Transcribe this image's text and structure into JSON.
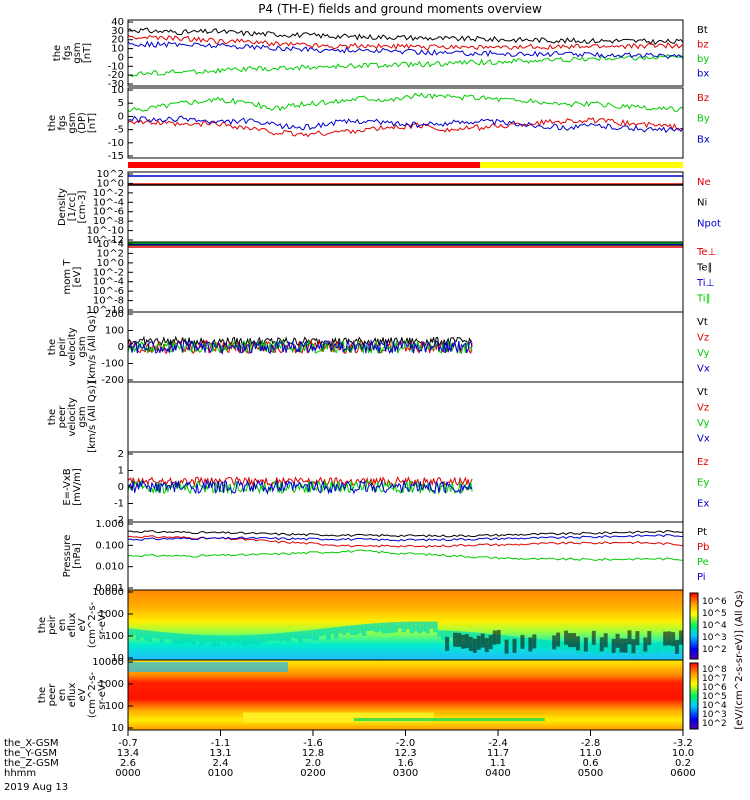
{
  "title": "P4 (TH-E) fields and ground moments overview",
  "colors": {
    "black": "#000000",
    "red": "#e00000",
    "green": "#00cc00",
    "blue": "#0000cc",
    "yellow": "#ffff00"
  },
  "chart_data": [
    {
      "type": "line",
      "id": "fgs_gsm",
      "ylabel": [
        "the",
        "fgs",
        "gsm",
        "[nT]"
      ],
      "yticks": [
        "40",
        "30",
        "20",
        "10",
        "0",
        "-10",
        "-20",
        "-30"
      ],
      "ylim": [
        -30,
        40
      ],
      "series": [
        {
          "name": "Bt",
          "color": "#000000",
          "values": [
            30,
            28,
            27,
            28,
            26,
            25,
            24,
            23,
            22,
            22,
            21,
            20,
            20,
            19,
            19,
            18,
            18,
            18,
            17,
            17
          ]
        },
        {
          "name": "bz",
          "color": "#e00000",
          "values": [
            22,
            21,
            20,
            18,
            17,
            15,
            14,
            12,
            13,
            12,
            11,
            12,
            11,
            10,
            12,
            11,
            12,
            12,
            13,
            13
          ]
        },
        {
          "name": "by",
          "color": "#00cc00",
          "values": [
            -18,
            -16,
            -15,
            -14,
            -12,
            -12,
            -10,
            -10,
            -8,
            -8,
            -7,
            -6,
            -5,
            -4,
            -3,
            -2,
            -1,
            0,
            0,
            1
          ]
        },
        {
          "name": "bx",
          "color": "#0000cc",
          "values": [
            15,
            14,
            14,
            13,
            12,
            10,
            9,
            8,
            8,
            7,
            6,
            5,
            5,
            4,
            4,
            4,
            3,
            3,
            2,
            2
          ]
        }
      ]
    },
    {
      "type": "line",
      "id": "fgs_gsm_dp",
      "ylabel": [
        "the",
        "fgs",
        "gsm",
        "(DP)",
        "[nT]"
      ],
      "yticks": [
        "10",
        "5",
        "0",
        "-5",
        "-10",
        "-15"
      ],
      "ylim": [
        -18,
        12
      ],
      "series": [
        {
          "name": "Bz",
          "color": "#e00000",
          "values": [
            -2,
            -3,
            -4,
            -3,
            -5,
            -7,
            -8,
            -7,
            -6,
            -5,
            -4,
            -6,
            -5,
            -4,
            -3,
            -2,
            -2,
            -3,
            -4,
            -5
          ]
        },
        {
          "name": "By",
          "color": "#00cc00",
          "values": [
            2,
            4,
            6,
            7,
            6,
            3,
            5,
            6,
            8,
            7,
            9,
            8,
            8,
            7,
            6,
            5,
            5,
            4,
            3,
            3
          ]
        },
        {
          "name": "Bx",
          "color": "#0000cc",
          "values": [
            -1,
            -2,
            -1,
            -3,
            -2,
            -4,
            -5,
            -3,
            -2,
            -3,
            -4,
            -3,
            -2,
            -3,
            -4,
            -5,
            -4,
            -5,
            -6,
            -6
          ]
        }
      ]
    },
    {
      "type": "line",
      "id": "density",
      "ylabel": [
        "Density",
        "[1/cc]",
        "[cm-3]"
      ],
      "yticks": [
        "10^2",
        "10^0",
        "10^-2",
        "10^-4",
        "10^-6",
        "10^-8",
        "10^-10",
        "10^-12"
      ],
      "series": [
        {
          "name": "Ne",
          "color": "#e00000"
        },
        {
          "name": "Ni",
          "color": "#000000"
        },
        {
          "name": "Npot",
          "color": "#0000cc"
        }
      ]
    },
    {
      "type": "line",
      "id": "mom_temp",
      "ylabel": [
        "mom T",
        "[eV]"
      ],
      "yticks": [
        "10^4",
        "10^2",
        "10^0",
        "10^-2",
        "10^-4",
        "10^-6",
        "10^-8",
        "10^-10"
      ],
      "series": [
        {
          "name": "Te⊥",
          "color": "#e00000"
        },
        {
          "name": "Te∥",
          "color": "#000000"
        },
        {
          "name": "Ti⊥",
          "color": "#0000cc"
        },
        {
          "name": "Ti∥",
          "color": "#00cc00"
        }
      ]
    },
    {
      "type": "line",
      "id": "peir_velocity",
      "ylabel": [
        "the",
        "peir",
        "velocity",
        "gsm",
        "[km/s (All Qs)]"
      ],
      "yticks": [
        "200",
        "100",
        "0",
        "-100",
        "-200"
      ],
      "ylim": [
        -200,
        200
      ],
      "series": [
        {
          "name": "Vt",
          "color": "#000000"
        },
        {
          "name": "Vz",
          "color": "#e00000"
        },
        {
          "name": "Vy",
          "color": "#00cc00"
        },
        {
          "name": "Vx",
          "color": "#0000cc"
        }
      ]
    },
    {
      "type": "line",
      "id": "peer_velocity",
      "ylabel": [
        "the",
        "peer",
        "velocity",
        "gsm",
        "[km/s (All Qs)]"
      ],
      "yticks": [],
      "series": [
        {
          "name": "Vt",
          "color": "#000000"
        },
        {
          "name": "Vz",
          "color": "#e00000"
        },
        {
          "name": "Vy",
          "color": "#00cc00"
        },
        {
          "name": "Vx",
          "color": "#0000cc"
        }
      ]
    },
    {
      "type": "line",
      "id": "e_vxb",
      "ylabel": [
        "E=-VxB",
        "[mV/m]"
      ],
      "yticks": [
        "2",
        "1",
        "0",
        "-1",
        "-2"
      ],
      "ylim": [
        -2,
        2
      ],
      "series": [
        {
          "name": "Ez",
          "color": "#e00000"
        },
        {
          "name": "Ey",
          "color": "#00cc00"
        },
        {
          "name": "Ex",
          "color": "#0000cc"
        }
      ]
    },
    {
      "type": "line",
      "id": "pressure",
      "ylabel": [
        "Pressure",
        "[nPa]"
      ],
      "yticks": [
        "1.000",
        "0.100",
        "0.010",
        "0.001"
      ],
      "series": [
        {
          "name": "Pt",
          "color": "#000000",
          "values": [
            0.45,
            0.42,
            0.4,
            0.38,
            0.36,
            0.33,
            0.31,
            0.3,
            0.28,
            0.28,
            0.27,
            0.27,
            0.28,
            0.3,
            0.32,
            0.34,
            0.36,
            0.4,
            0.42,
            0.45
          ]
        },
        {
          "name": "Pb",
          "color": "#e00000",
          "values": [
            0.25,
            0.24,
            0.22,
            0.2,
            0.18,
            0.14,
            0.12,
            0.1,
            0.08,
            0.09,
            0.08,
            0.09,
            0.1,
            0.1,
            0.11,
            0.12,
            0.12,
            0.13,
            0.12,
            0.1
          ]
        },
        {
          "name": "Pe",
          "color": "#00cc00",
          "values": [
            0.03,
            0.03,
            0.028,
            0.03,
            0.032,
            0.035,
            0.04,
            0.045,
            0.05,
            0.04,
            0.035,
            0.03,
            0.025,
            0.022,
            0.02,
            0.02,
            0.019,
            0.02,
            0.021,
            0.02
          ]
        },
        {
          "name": "Pi",
          "color": "#0000cc",
          "values": [
            0.18,
            0.19,
            0.2,
            0.2,
            0.21,
            0.2,
            0.19,
            0.19,
            0.18,
            0.17,
            0.17,
            0.18,
            0.19,
            0.2,
            0.21,
            0.22,
            0.24,
            0.26,
            0.28,
            0.28
          ]
        }
      ]
    },
    {
      "type": "heatmap",
      "id": "peir_eflux",
      "ylabel": [
        "the",
        "peir",
        "en",
        "eflux",
        "eV",
        "(cm^2-s-",
        "sr-eV)"
      ],
      "yticks": [
        "10000",
        "1000",
        "100",
        "10"
      ]
    },
    {
      "type": "heatmap",
      "id": "peer_eflux",
      "ylabel": [
        "the",
        "peer",
        "en",
        "eflux",
        "eV",
        "(cm^2-s-",
        "sr-eV)"
      ],
      "yticks": [
        "10000",
        "1000",
        "100",
        "10"
      ]
    }
  ],
  "colorbar": {
    "label": "[eV/(cm^2-s-sr-eV)] (All Qs)",
    "ticks_top": [
      "10^6",
      "10^5",
      "10^4",
      "10^3",
      "10^2"
    ],
    "ticks_bottom": [
      "10^8",
      "10^7",
      "10^6",
      "10^5",
      "10^4",
      "10^3",
      "10^2"
    ]
  },
  "xaxis": {
    "row_labels": [
      "the_X-GSM",
      "the_Y-GSM",
      "the_Z-GSM",
      "hhmm",
      "2019 Aug 13"
    ],
    "columns": [
      {
        "x": "-0.7",
        "y": "13.4",
        "z": "2.6",
        "t": "0000"
      },
      {
        "x": "-1.1",
        "y": "13.1",
        "z": "2.4",
        "t": "0100"
      },
      {
        "x": "-1.6",
        "y": "12.8",
        "z": "2.0",
        "t": "0200"
      },
      {
        "x": "-2.0",
        "y": "12.3",
        "z": "1.6",
        "t": "0300"
      },
      {
        "x": "-2.4",
        "y": "11.7",
        "z": "1.1",
        "t": "0400"
      },
      {
        "x": "-2.8",
        "y": "11.0",
        "z": "0.6",
        "t": "0500"
      },
      {
        "x": "-3.2",
        "y": "10.0",
        "z": "0.2",
        "t": "0600"
      }
    ]
  }
}
